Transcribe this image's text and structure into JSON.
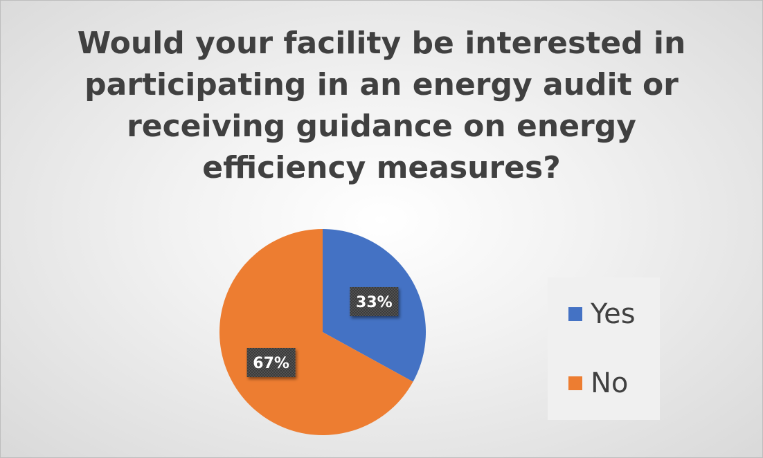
{
  "chart_data": {
    "type": "pie",
    "title": "Would your facility be interested in participating in an energy audit or receiving guidance on energy efficiency measures?",
    "categories": [
      "Yes",
      "No"
    ],
    "values": [
      33,
      67
    ],
    "data_labels": [
      "33%",
      "67%"
    ],
    "colors": [
      "#4472c4",
      "#ed7d31"
    ],
    "start_angle_deg": 0,
    "direction": "clockwise",
    "legend": "right"
  }
}
